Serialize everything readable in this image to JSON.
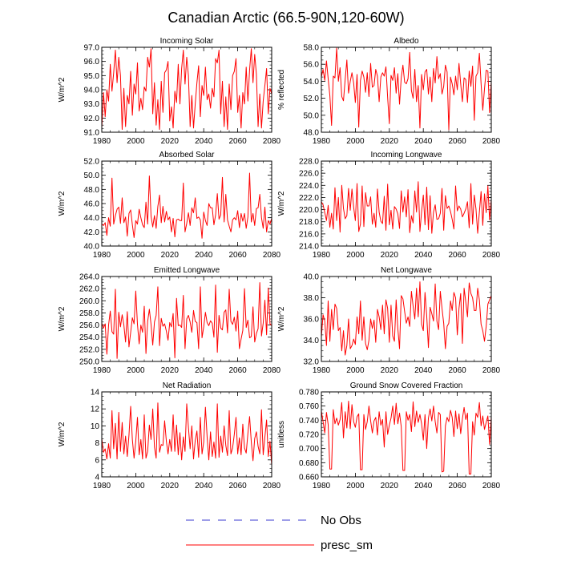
{
  "title": "Canadian Arctic (66.5-90N,120-60W)",
  "legend": [
    {
      "label": "No Obs",
      "color": "#3b3bd1",
      "dash": true
    },
    {
      "label": "presc_sm",
      "color": "#ff0000",
      "dash": false
    }
  ],
  "chart_data": [
    {
      "type": "line",
      "title": "Incoming Solar",
      "ylabel": "W/m^2",
      "xlim": [
        1980,
        2080
      ],
      "ylim": [
        91,
        97
      ],
      "xticks": [
        1980,
        2000,
        2020,
        2040,
        2060,
        2080
      ],
      "yticks": [
        91,
        92,
        93,
        94,
        95,
        96,
        97
      ],
      "decimals": 1,
      "series": [
        {
          "name": "presc_sm",
          "values": [
            91.3,
            93.8,
            92.1,
            94.0,
            93.2,
            95.8,
            93.9,
            95.2,
            96.8,
            94.5,
            96.3,
            95.0,
            91.2,
            94.1,
            91.4,
            93.6,
            93.0,
            95.3,
            92.2,
            94.4,
            93.7,
            95.9,
            92.5,
            93.4,
            92.6,
            94.2,
            93.9,
            96.3,
            95.6,
            96.9,
            92.3,
            94.5,
            91.5,
            93.3,
            91.2,
            94.6,
            92.4,
            95.2,
            95.4,
            96.0,
            91.8,
            92.8,
            91.3,
            93.9,
            93.1,
            95.8,
            93.0,
            95.5,
            96.8,
            94.4,
            96.3,
            95.0,
            91.4,
            93.6,
            91.3,
            93.0,
            94.5,
            95.7,
            92.1,
            94.3,
            93.6,
            95.6,
            93.3,
            93.7,
            92.7,
            94.1,
            93.5,
            96.2,
            95.9,
            96.8,
            92.3,
            94.6,
            91.4,
            93.5,
            91.2,
            94.4,
            92.6,
            95.0,
            95.3,
            96.2,
            92.4,
            93.6,
            91.3,
            93.8,
            93.0,
            95.6,
            93.2,
            95.4,
            96.9,
            94.5,
            96.5,
            95.1,
            91.4,
            93.7,
            91.3,
            93.2,
            94.3,
            95.5,
            92.3,
            94.1,
            93.7
          ]
        }
      ]
    },
    {
      "type": "line",
      "title": "Albedo",
      "ylabel": "% reflected",
      "xlim": [
        1980,
        2080
      ],
      "ylim": [
        48,
        58
      ],
      "xticks": [
        1980,
        2000,
        2020,
        2040,
        2060,
        2080
      ],
      "yticks": [
        48,
        50,
        52,
        54,
        56,
        58
      ],
      "decimals": 1,
      "series": [
        {
          "name": "presc_sm",
          "values": [
            54.5,
            55.4,
            54.1,
            56.4,
            54.3,
            52.3,
            48.8,
            54.6,
            54.4,
            57.9,
            54.0,
            55.6,
            52.2,
            51.7,
            54.2,
            56.5,
            52.6,
            54.0,
            55.0,
            53.8,
            51.5,
            54.8,
            48.6,
            54.1,
            55.2,
            54.5,
            52.7,
            55.0,
            52.2,
            56.1,
            53.3,
            53.5,
            55.4,
            54.6,
            51.6,
            54.5,
            55.0,
            54.6,
            55.7,
            52.1,
            49.0,
            54.7,
            54.1,
            55.6,
            52.6,
            54.9,
            51.3,
            54.4,
            55.9,
            53.9,
            53.7,
            54.3,
            57.4,
            52.9,
            52.0,
            55.4,
            51.6,
            53.5,
            48.5,
            54.8,
            53.0,
            55.1,
            55.4,
            52.5,
            54.5,
            51.6,
            55.5,
            53.8,
            56.9,
            54.3,
            54.9,
            52.5,
            53.4,
            55.9,
            55.1,
            48.3,
            54.5,
            53.7,
            52.4,
            54.6,
            53.0,
            56.1,
            53.7,
            51.6,
            54.4,
            54.2,
            51.5,
            55.2,
            53.4,
            55.8,
            49.4,
            54.6,
            55.0,
            57.3,
            53.7,
            50.6,
            53.1,
            55.3,
            55.2,
            50.3,
            54.0
          ]
        }
      ]
    },
    {
      "type": "line",
      "title": "Absorbed Solar",
      "ylabel": "W/m^2",
      "xlim": [
        1980,
        2080
      ],
      "ylim": [
        40,
        52
      ],
      "xticks": [
        1980,
        2000,
        2020,
        2040,
        2060,
        2080
      ],
      "yticks": [
        40,
        42,
        44,
        46,
        48,
        50,
        52
      ],
      "decimals": 1,
      "series": [
        {
          "name": "presc_sm",
          "values": [
            43.1,
            42.9,
            43.3,
            41.5,
            44.0,
            42.8,
            49.6,
            43.1,
            44.3,
            45.2,
            45.5,
            43.2,
            46.8,
            43.3,
            44.1,
            41.4,
            44.6,
            45.1,
            43.0,
            41.2,
            43.6,
            43.1,
            45.2,
            44.0,
            43.0,
            42.6,
            46.2,
            43.1,
            49.9,
            44.2,
            42.7,
            44.3,
            42.5,
            45.6,
            47.2,
            43.3,
            45.6,
            43.4,
            44.9,
            43.7,
            44.1,
            42.0,
            43.9,
            41.3,
            43.7,
            43.8,
            43.6,
            43.6,
            48.9,
            42.0,
            43.2,
            44.7,
            42.9,
            45.4,
            44.7,
            46.8,
            43.9,
            44.1,
            43.7,
            41.1,
            44.8,
            43.6,
            42.9,
            46.0,
            45.4,
            45.4,
            43.0,
            44.4,
            47.4,
            43.8,
            44.4,
            49.7,
            43.4,
            47.3,
            43.7,
            42.8,
            42.0,
            43.7,
            44.0,
            43.7,
            45.0,
            42.6,
            44.6,
            43.5,
            44.6,
            42.5,
            44.1,
            50.3,
            43.4,
            44.6,
            42.9,
            45.3,
            45.4,
            47.3,
            44.0,
            42.5,
            45.5,
            42.0,
            43.6,
            43.1,
            43.9
          ]
        }
      ]
    },
    {
      "type": "line",
      "title": "Incoming Longwave",
      "ylabel": "W/m^2",
      "xlim": [
        1980,
        2080
      ],
      "ylim": [
        214,
        228
      ],
      "xticks": [
        1980,
        2000,
        2020,
        2040,
        2060,
        2080
      ],
      "yticks": [
        214,
        216,
        218,
        220,
        222,
        224,
        226,
        228
      ],
      "decimals": 1,
      "series": [
        {
          "name": "presc_sm",
          "values": [
            221.3,
            220.8,
            219.5,
            218.2,
            220.7,
            217.1,
            219.4,
            216.8,
            223.6,
            218.2,
            222.0,
            216.3,
            224.0,
            220.2,
            218.5,
            219.0,
            223.5,
            219.9,
            223.4,
            220.4,
            218.2,
            224.3,
            216.4,
            217.6,
            223.9,
            217.2,
            222.8,
            220.6,
            220.6,
            222.1,
            217.6,
            219.4,
            217.1,
            223.4,
            219.6,
            218.1,
            217.7,
            222.2,
            216.6,
            224.2,
            217.5,
            219.9,
            216.8,
            220.5,
            220.1,
            219.3,
            216.9,
            223.1,
            219.6,
            222.1,
            218.8,
            223.3,
            216.2,
            219.0,
            217.8,
            223.1,
            219.6,
            224.6,
            216.4,
            219.7,
            222.4,
            217.5,
            223.7,
            216.7,
            222.3,
            216.1,
            219.6,
            220.8,
            218.4,
            218.5,
            219.4,
            223.5,
            216.6,
            222.3,
            220.2,
            220.6,
            219.7,
            218.4,
            216.8,
            223.9,
            219.8,
            220.6,
            220.1,
            218.8,
            219.4,
            220.1,
            221.3,
            217.0,
            224.3,
            217.6,
            222.4,
            220.1,
            216.1,
            219.6,
            223.0,
            217.4,
            222.6,
            219.5,
            223.9,
            218.3,
            221.7
          ]
        }
      ]
    },
    {
      "type": "line",
      "title": "Emitted Longwave",
      "ylabel": "W/m^2",
      "xlim": [
        1980,
        2080
      ],
      "ylim": [
        250,
        264
      ],
      "xticks": [
        1980,
        2000,
        2020,
        2040,
        2060,
        2080
      ],
      "yticks": [
        250,
        252,
        254,
        256,
        258,
        260,
        262,
        264
      ],
      "decimals": 1,
      "series": [
        {
          "name": "presc_sm",
          "values": [
            256.3,
            255.5,
            256.2,
            251.2,
            256.0,
            258.3,
            254.9,
            254.5,
            261.9,
            250.5,
            258.1,
            255.7,
            257.7,
            256.0,
            253.2,
            258.2,
            252.4,
            254.8,
            257.2,
            256.2,
            261.6,
            256.1,
            252.9,
            256.0,
            254.8,
            259.1,
            251.3,
            256.6,
            258.6,
            256.1,
            252.7,
            256.5,
            257.6,
            262.3,
            252.6,
            257.1,
            255.8,
            256.2,
            255.0,
            253.5,
            256.4,
            255.7,
            257.9,
            250.6,
            260.4,
            255.9,
            256.0,
            255.6,
            260.9,
            252.1,
            257.0,
            257.6,
            256.5,
            254.8,
            258.4,
            256.6,
            256.4,
            252.1,
            262.3,
            253.9,
            255.7,
            258.1,
            256.4,
            255.9,
            256.7,
            256.3,
            254.0,
            262.6,
            251.5,
            257.6,
            255.5,
            255.2,
            258.1,
            258.5,
            254.7,
            261.9,
            256.6,
            256.1,
            257.3,
            255.0,
            258.3,
            252.1,
            253.7,
            255.1,
            262.0,
            255.6,
            256.8,
            253.9,
            254.1,
            259.0,
            253.2,
            254.6,
            255.4,
            263.0,
            254.2,
            256.3,
            260.1,
            254.4,
            262.1,
            256.2,
            255.9
          ]
        }
      ]
    },
    {
      "type": "line",
      "title": "Net Longwave",
      "ylabel": "W/m^2",
      "xlim": [
        1980,
        2080
      ],
      "ylim": [
        32,
        40
      ],
      "xticks": [
        1980,
        2000,
        2020,
        2040,
        2060,
        2080
      ],
      "yticks": [
        32,
        34,
        36,
        38,
        40
      ],
      "decimals": 1,
      "series": [
        {
          "name": "presc_sm",
          "values": [
            34.3,
            36.4,
            35.8,
            33.5,
            37.7,
            33.9,
            36.9,
            35.0,
            37.4,
            37.0,
            34.9,
            35.2,
            33.0,
            34.9,
            32.6,
            33.5,
            36.0,
            33.2,
            33.5,
            34.1,
            33.6,
            36.2,
            34.6,
            37.7,
            34.0,
            36.2,
            33.7,
            33.1,
            34.0,
            36.0,
            35.1,
            35.9,
            33.8,
            36.9,
            36.2,
            35.0,
            37.3,
            34.6,
            37.8,
            37.0,
            33.8,
            37.3,
            34.4,
            33.9,
            37.8,
            35.1,
            33.2,
            38.2,
            37.9,
            36.7,
            35.6,
            36.2,
            35.3,
            38.6,
            37.2,
            36.0,
            38.9,
            36.2,
            39.5,
            35.5,
            34.9,
            38.5,
            36.3,
            33.3,
            37.1,
            36.5,
            35.8,
            39.3,
            35.8,
            35.0,
            38.6,
            37.0,
            35.6,
            33.2,
            35.3,
            35.6,
            37.7,
            36.8,
            38.5,
            38.0,
            34.5,
            37.0,
            38.4,
            33.7,
            38.9,
            37.6,
            36.2,
            39.4,
            38.4,
            38.0,
            36.8,
            36.8,
            38.9,
            37.8,
            35.5,
            34.9,
            33.9,
            35.3,
            37.4,
            37.8,
            38.2
          ]
        }
      ]
    },
    {
      "type": "line",
      "title": "Net Radiation",
      "ylabel": "W/m^2",
      "xlim": [
        1980,
        2080
      ],
      "ylim": [
        4,
        14
      ],
      "xticks": [
        1980,
        2000,
        2020,
        2040,
        2060,
        2080
      ],
      "yticks": [
        4,
        6,
        8,
        10,
        12,
        14
      ],
      "decimals": 0,
      "series": [
        {
          "name": "presc_sm",
          "values": [
            8.5,
            6.9,
            7.3,
            6.1,
            7.9,
            6.2,
            11.8,
            7.3,
            10.3,
            6.1,
            11.6,
            7.0,
            10.4,
            6.7,
            8.8,
            6.4,
            8.9,
            12.3,
            8.4,
            6.2,
            8.2,
            11.0,
            6.6,
            8.4,
            6.1,
            11.3,
            6.2,
            7.0,
            10.1,
            8.4,
            12.0,
            7.5,
            6.2,
            12.7,
            6.9,
            7.8,
            7.7,
            10.6,
            8.2,
            6.7,
            8.4,
            7.0,
            11.3,
            7.0,
            10.1,
            6.6,
            9.2,
            6.0,
            8.7,
            7.0,
            12.6,
            9.8,
            7.3,
            10.0,
            6.1,
            8.3,
            9.4,
            6.3,
            11.0,
            6.7,
            8.1,
            12.2,
            8.7,
            6.0,
            9.3,
            6.4,
            8.1,
            6.2,
            12.6,
            6.3,
            8.8,
            6.9,
            10.0,
            7.7,
            6.5,
            11.8,
            6.7,
            7.4,
            9.0,
            11.0,
            6.7,
            8.6,
            6.6,
            10.2,
            7.4,
            6.8,
            9.1,
            11.1,
            8.1,
            5.9,
            8.5,
            9.3,
            7.6,
            6.7,
            11.9,
            6.6,
            8.7,
            10.7,
            6.4,
            8.2,
            5.4
          ]
        }
      ]
    },
    {
      "type": "line",
      "title": "Ground Snow Covered Fraction",
      "ylabel": "unitless",
      "xlim": [
        1980,
        2080
      ],
      "ylim": [
        0.66,
        0.78
      ],
      "xticks": [
        1980,
        2000,
        2020,
        2040,
        2060,
        2080
      ],
      "yticks": [
        0.66,
        0.68,
        0.7,
        0.72,
        0.74,
        0.76,
        0.78
      ],
      "decimals": 3,
      "series": [
        {
          "name": "presc_sm",
          "values": [
            0.753,
            0.738,
            0.722,
            0.751,
            0.734,
            0.671,
            0.671,
            0.755,
            0.735,
            0.743,
            0.733,
            0.741,
            0.765,
            0.715,
            0.752,
            0.729,
            0.767,
            0.728,
            0.762,
            0.738,
            0.73,
            0.745,
            0.749,
            0.67,
            0.67,
            0.748,
            0.727,
            0.738,
            0.76,
            0.739,
            0.722,
            0.739,
            0.744,
            0.719,
            0.752,
            0.733,
            0.741,
            0.702,
            0.752,
            0.72,
            0.733,
            0.743,
            0.76,
            0.734,
            0.764,
            0.735,
            0.75,
            0.731,
            0.669,
            0.669,
            0.752,
            0.74,
            0.748,
            0.724,
            0.766,
            0.731,
            0.753,
            0.737,
            0.748,
            0.735,
            0.712,
            0.748,
            0.7,
            0.743,
            0.756,
            0.739,
            0.76,
            0.738,
            0.722,
            0.751,
            0.748,
            0.667,
            0.668,
            0.732,
            0.744,
            0.738,
            0.754,
            0.744,
            0.717,
            0.753,
            0.728,
            0.749,
            0.721,
            0.742,
            0.758,
            0.741,
            0.75,
            0.664,
            0.664,
            0.738,
            0.719,
            0.75,
            0.744,
            0.765,
            0.732,
            0.746,
            0.727,
            0.737,
            0.746,
            0.706,
            0.745
          ]
        }
      ]
    }
  ]
}
